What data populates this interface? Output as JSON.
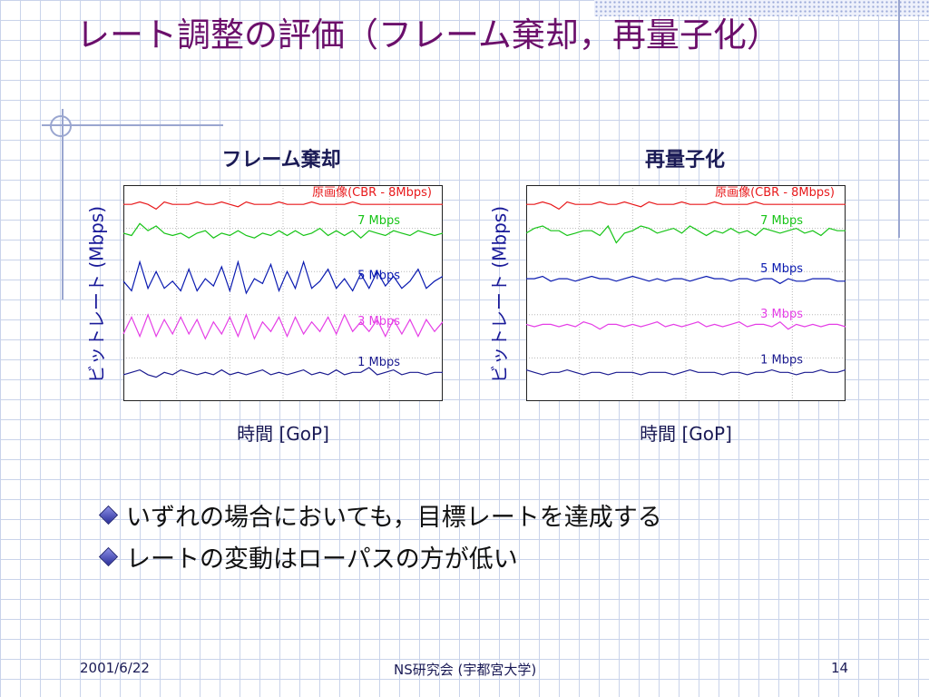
{
  "slide": {
    "title": "レート調整の評価（フレーム棄却，再量子化）",
    "bullets": [
      "いずれの場合においても，目標レートを達成する",
      "レートの変動はローパスの方が低い"
    ],
    "footer": {
      "date": "2001/6/22",
      "center": "NS研究会 (宇都宮大学)",
      "page": "14"
    }
  },
  "chart_data": [
    {
      "type": "line",
      "title": "フレーム棄却",
      "xlabel": "時間 [GoP]",
      "ylabel": "ビットレート (Mbps)",
      "ylim": [
        0,
        9
      ],
      "grid": true,
      "series": [
        {
          "name": "原画像(CBR - 8Mbps)",
          "color": "#e8191b",
          "values": [
            8.2,
            8.2,
            8.3,
            8.2,
            8.0,
            8.3,
            8.2,
            8.2,
            8.2,
            8.3,
            8.2,
            8.2,
            8.3,
            8.2,
            8.1,
            8.3,
            8.2,
            8.2,
            8.2,
            8.3,
            8.2,
            8.2,
            8.2,
            8.3,
            8.2,
            8.2,
            8.2,
            8.2,
            8.3,
            8.2,
            8.2,
            8.2,
            8.2,
            8.2,
            8.2,
            8.2,
            8.2,
            8.2,
            8.2,
            8.2
          ]
        },
        {
          "name": "7 Mbps",
          "color": "#17c417",
          "values": [
            7.0,
            6.9,
            7.4,
            7.1,
            7.3,
            7.0,
            6.9,
            7.0,
            6.8,
            7.0,
            7.1,
            6.8,
            7.0,
            6.9,
            7.1,
            6.9,
            6.8,
            7.0,
            6.9,
            7.1,
            6.9,
            7.1,
            6.9,
            7.0,
            7.2,
            6.9,
            7.1,
            6.9,
            7.1,
            6.8,
            7.1,
            7.0,
            6.9,
            7.1,
            7.0,
            6.9,
            7.1,
            7.0,
            6.9,
            7.0
          ]
        },
        {
          "name": "5 Mbps",
          "color": "#0a1ab0",
          "values": [
            5.0,
            4.6,
            5.8,
            4.7,
            5.4,
            4.7,
            5.0,
            4.6,
            5.5,
            4.6,
            5.1,
            4.8,
            5.6,
            4.6,
            5.8,
            4.5,
            5.1,
            4.9,
            5.7,
            4.6,
            5.4,
            4.7,
            5.8,
            4.7,
            5.0,
            5.5,
            4.7,
            5.1,
            4.6,
            5.3,
            4.7,
            5.4,
            4.8,
            5.2,
            4.7,
            5.0,
            5.5,
            4.7,
            5.0,
            5.2
          ]
        },
        {
          "name": "3 Mbps",
          "color": "#e53fe6",
          "values": [
            2.8,
            3.5,
            2.7,
            3.6,
            2.7,
            3.4,
            2.8,
            3.5,
            2.8,
            3.4,
            2.6,
            3.3,
            2.8,
            3.5,
            2.7,
            3.6,
            2.6,
            3.3,
            2.9,
            3.5,
            2.7,
            3.5,
            2.8,
            3.3,
            2.9,
            3.5,
            2.8,
            3.6,
            2.9,
            3.3,
            2.9,
            3.4,
            2.7,
            3.4,
            2.8,
            3.4,
            2.7,
            3.4,
            2.9,
            3.3
          ]
        },
        {
          "name": "1 Mbps",
          "color": "#1a1a8f",
          "values": [
            1.1,
            1.2,
            1.3,
            1.1,
            1.0,
            1.2,
            1.1,
            1.3,
            1.2,
            1.1,
            1.2,
            1.1,
            1.3,
            1.1,
            1.2,
            1.1,
            1.2,
            1.3,
            1.1,
            1.2,
            1.1,
            1.2,
            1.3,
            1.1,
            1.2,
            1.1,
            1.3,
            1.1,
            1.2,
            1.2,
            1.4,
            1.1,
            1.2,
            1.3,
            1.1,
            1.2,
            1.2,
            1.1,
            1.2,
            1.2
          ]
        }
      ]
    },
    {
      "type": "line",
      "title": "再量子化",
      "xlabel": "時間 [GoP]",
      "ylabel": "ビットレート (Mbps)",
      "ylim": [
        0,
        9
      ],
      "grid": true,
      "series": [
        {
          "name": "原画像(CBR - 8Mbps)",
          "color": "#e8191b",
          "values": [
            8.2,
            8.2,
            8.3,
            8.2,
            8.0,
            8.3,
            8.2,
            8.2,
            8.2,
            8.3,
            8.2,
            8.2,
            8.3,
            8.2,
            8.1,
            8.3,
            8.2,
            8.2,
            8.2,
            8.3,
            8.2,
            8.2,
            8.2,
            8.3,
            8.2,
            8.2,
            8.2,
            8.2,
            8.3,
            8.2,
            8.2,
            8.2,
            8.2,
            8.2,
            8.2,
            8.2,
            8.2,
            8.2,
            8.2,
            8.2
          ]
        },
        {
          "name": "7 Mbps",
          "color": "#17c417",
          "values": [
            7.0,
            7.2,
            7.3,
            7.1,
            7.1,
            6.9,
            7.0,
            7.1,
            7.1,
            6.9,
            7.3,
            6.6,
            7.0,
            7.1,
            7.3,
            7.2,
            7.0,
            7.1,
            7.2,
            7.0,
            7.3,
            7.1,
            6.9,
            7.1,
            7.0,
            7.2,
            7.0,
            7.1,
            6.9,
            7.2,
            7.1,
            7.0,
            7.1,
            7.2,
            7.0,
            7.1,
            6.9,
            7.2,
            7.1,
            7.1
          ]
        },
        {
          "name": "5 Mbps",
          "color": "#0a1ab0",
          "values": [
            5.1,
            5.1,
            5.2,
            5.0,
            5.1,
            5.1,
            5.0,
            5.1,
            5.2,
            5.1,
            5.1,
            5.0,
            5.1,
            5.2,
            5.1,
            5.0,
            5.1,
            5.0,
            5.1,
            5.1,
            5.0,
            5.1,
            5.2,
            5.1,
            5.1,
            5.0,
            5.1,
            5.1,
            5.0,
            5.1,
            5.1,
            4.9,
            5.1,
            5.0,
            5.0,
            5.1,
            5.1,
            5.1,
            5.0,
            5.0
          ]
        },
        {
          "name": "3 Mbps",
          "color": "#e53fe6",
          "values": [
            3.2,
            3.1,
            3.2,
            3.2,
            3.1,
            3.2,
            3.1,
            3.3,
            3.2,
            3.0,
            3.2,
            3.2,
            3.1,
            3.2,
            3.1,
            3.2,
            3.3,
            3.1,
            3.2,
            3.1,
            3.2,
            3.3,
            3.1,
            3.2,
            3.1,
            3.2,
            3.3,
            3.1,
            3.2,
            3.2,
            3.1,
            3.3,
            3.0,
            3.2,
            3.1,
            3.2,
            3.1,
            3.2,
            3.2,
            3.1
          ]
        },
        {
          "name": "1 Mbps",
          "color": "#1a1a8f",
          "values": [
            1.3,
            1.2,
            1.1,
            1.2,
            1.2,
            1.3,
            1.2,
            1.1,
            1.2,
            1.2,
            1.1,
            1.2,
            1.2,
            1.2,
            1.1,
            1.2,
            1.2,
            1.2,
            1.1,
            1.2,
            1.3,
            1.2,
            1.2,
            1.2,
            1.1,
            1.2,
            1.2,
            1.1,
            1.2,
            1.2,
            1.3,
            1.2,
            1.2,
            1.1,
            1.2,
            1.2,
            1.3,
            1.2,
            1.2,
            1.3
          ]
        }
      ]
    }
  ]
}
